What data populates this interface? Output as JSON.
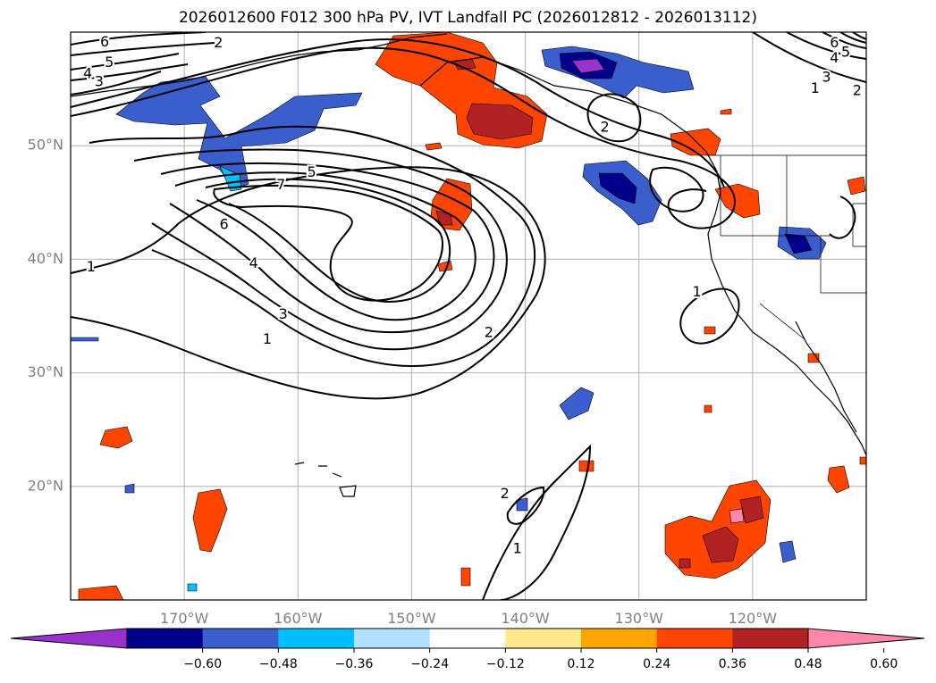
{
  "title": "2026012600 F012 300 hPa PV, IVT Landfall PC (2026012812 - 2026013112)",
  "map": {
    "lon_range": [
      -180,
      -110
    ],
    "lat_range": [
      10,
      60
    ],
    "gridlines": true,
    "x_ticks": [
      {
        "lon": -170,
        "label": "170°W"
      },
      {
        "lon": -160,
        "label": "160°W"
      },
      {
        "lon": -150,
        "label": "150°W"
      },
      {
        "lon": -140,
        "label": "140°W"
      },
      {
        "lon": -130,
        "label": "130°W"
      },
      {
        "lon": -120,
        "label": "120°W"
      }
    ],
    "y_ticks": [
      {
        "lat": 50,
        "label": "50°N"
      },
      {
        "lat": 40,
        "label": "40°N"
      },
      {
        "lat": 30,
        "label": "30°N"
      },
      {
        "lat": 20,
        "label": "20°N"
      }
    ]
  },
  "contour_labels": [
    {
      "lon": -177,
      "lat": 59.1,
      "text": "6"
    },
    {
      "lon": -176.6,
      "lat": 57.3,
      "text": "5"
    },
    {
      "lon": -178.5,
      "lat": 56.3,
      "text": "4"
    },
    {
      "lon": -177.5,
      "lat": 55.6,
      "text": "3"
    },
    {
      "lon": -167,
      "lat": 59.0,
      "text": "2"
    },
    {
      "lon": -158.8,
      "lat": 47.6,
      "text": "5"
    },
    {
      "lon": -161.5,
      "lat": 46.5,
      "text": "7"
    },
    {
      "lon": -166.5,
      "lat": 43.0,
      "text": "6"
    },
    {
      "lon": -163.9,
      "lat": 39.6,
      "text": "4"
    },
    {
      "lon": -178.2,
      "lat": 39.3,
      "text": "1"
    },
    {
      "lon": -161.3,
      "lat": 35.1,
      "text": "3"
    },
    {
      "lon": -162.7,
      "lat": 32.9,
      "text": "1"
    },
    {
      "lon": -143.2,
      "lat": 33.5,
      "text": "2"
    },
    {
      "lon": -133,
      "lat": 51.6,
      "text": "2"
    },
    {
      "lon": -124.9,
      "lat": 37.1,
      "text": "1"
    },
    {
      "lon": -141.8,
      "lat": 19.3,
      "text": "2"
    },
    {
      "lon": -140.7,
      "lat": 14.5,
      "text": "1"
    },
    {
      "lon": -112.8,
      "lat": 59.0,
      "text": "6"
    },
    {
      "lon": -111.8,
      "lat": 58.2,
      "text": "5"
    },
    {
      "lon": -112.8,
      "lat": 57.7,
      "text": "4"
    },
    {
      "lon": -113.5,
      "lat": 56.0,
      "text": "3"
    },
    {
      "lon": -110.8,
      "lat": 54.8,
      "text": "2"
    },
    {
      "lon": -114.5,
      "lat": 55.0,
      "text": "1"
    }
  ],
  "colorbar": {
    "colors": [
      "#9932cc",
      "#00008b",
      "#3a5fcd",
      "#00bfff",
      "#b0e0ff",
      "#ffffff",
      "#ffe98a",
      "#ffa500",
      "#ff4500",
      "#b22222",
      "#ff88aa"
    ],
    "tick_labels": [
      "−0.60",
      "−0.48",
      "−0.36",
      "−0.24",
      "−0.12",
      "0.12",
      "0.24",
      "0.36",
      "0.48",
      "0.60"
    ],
    "extend": "both"
  }
}
